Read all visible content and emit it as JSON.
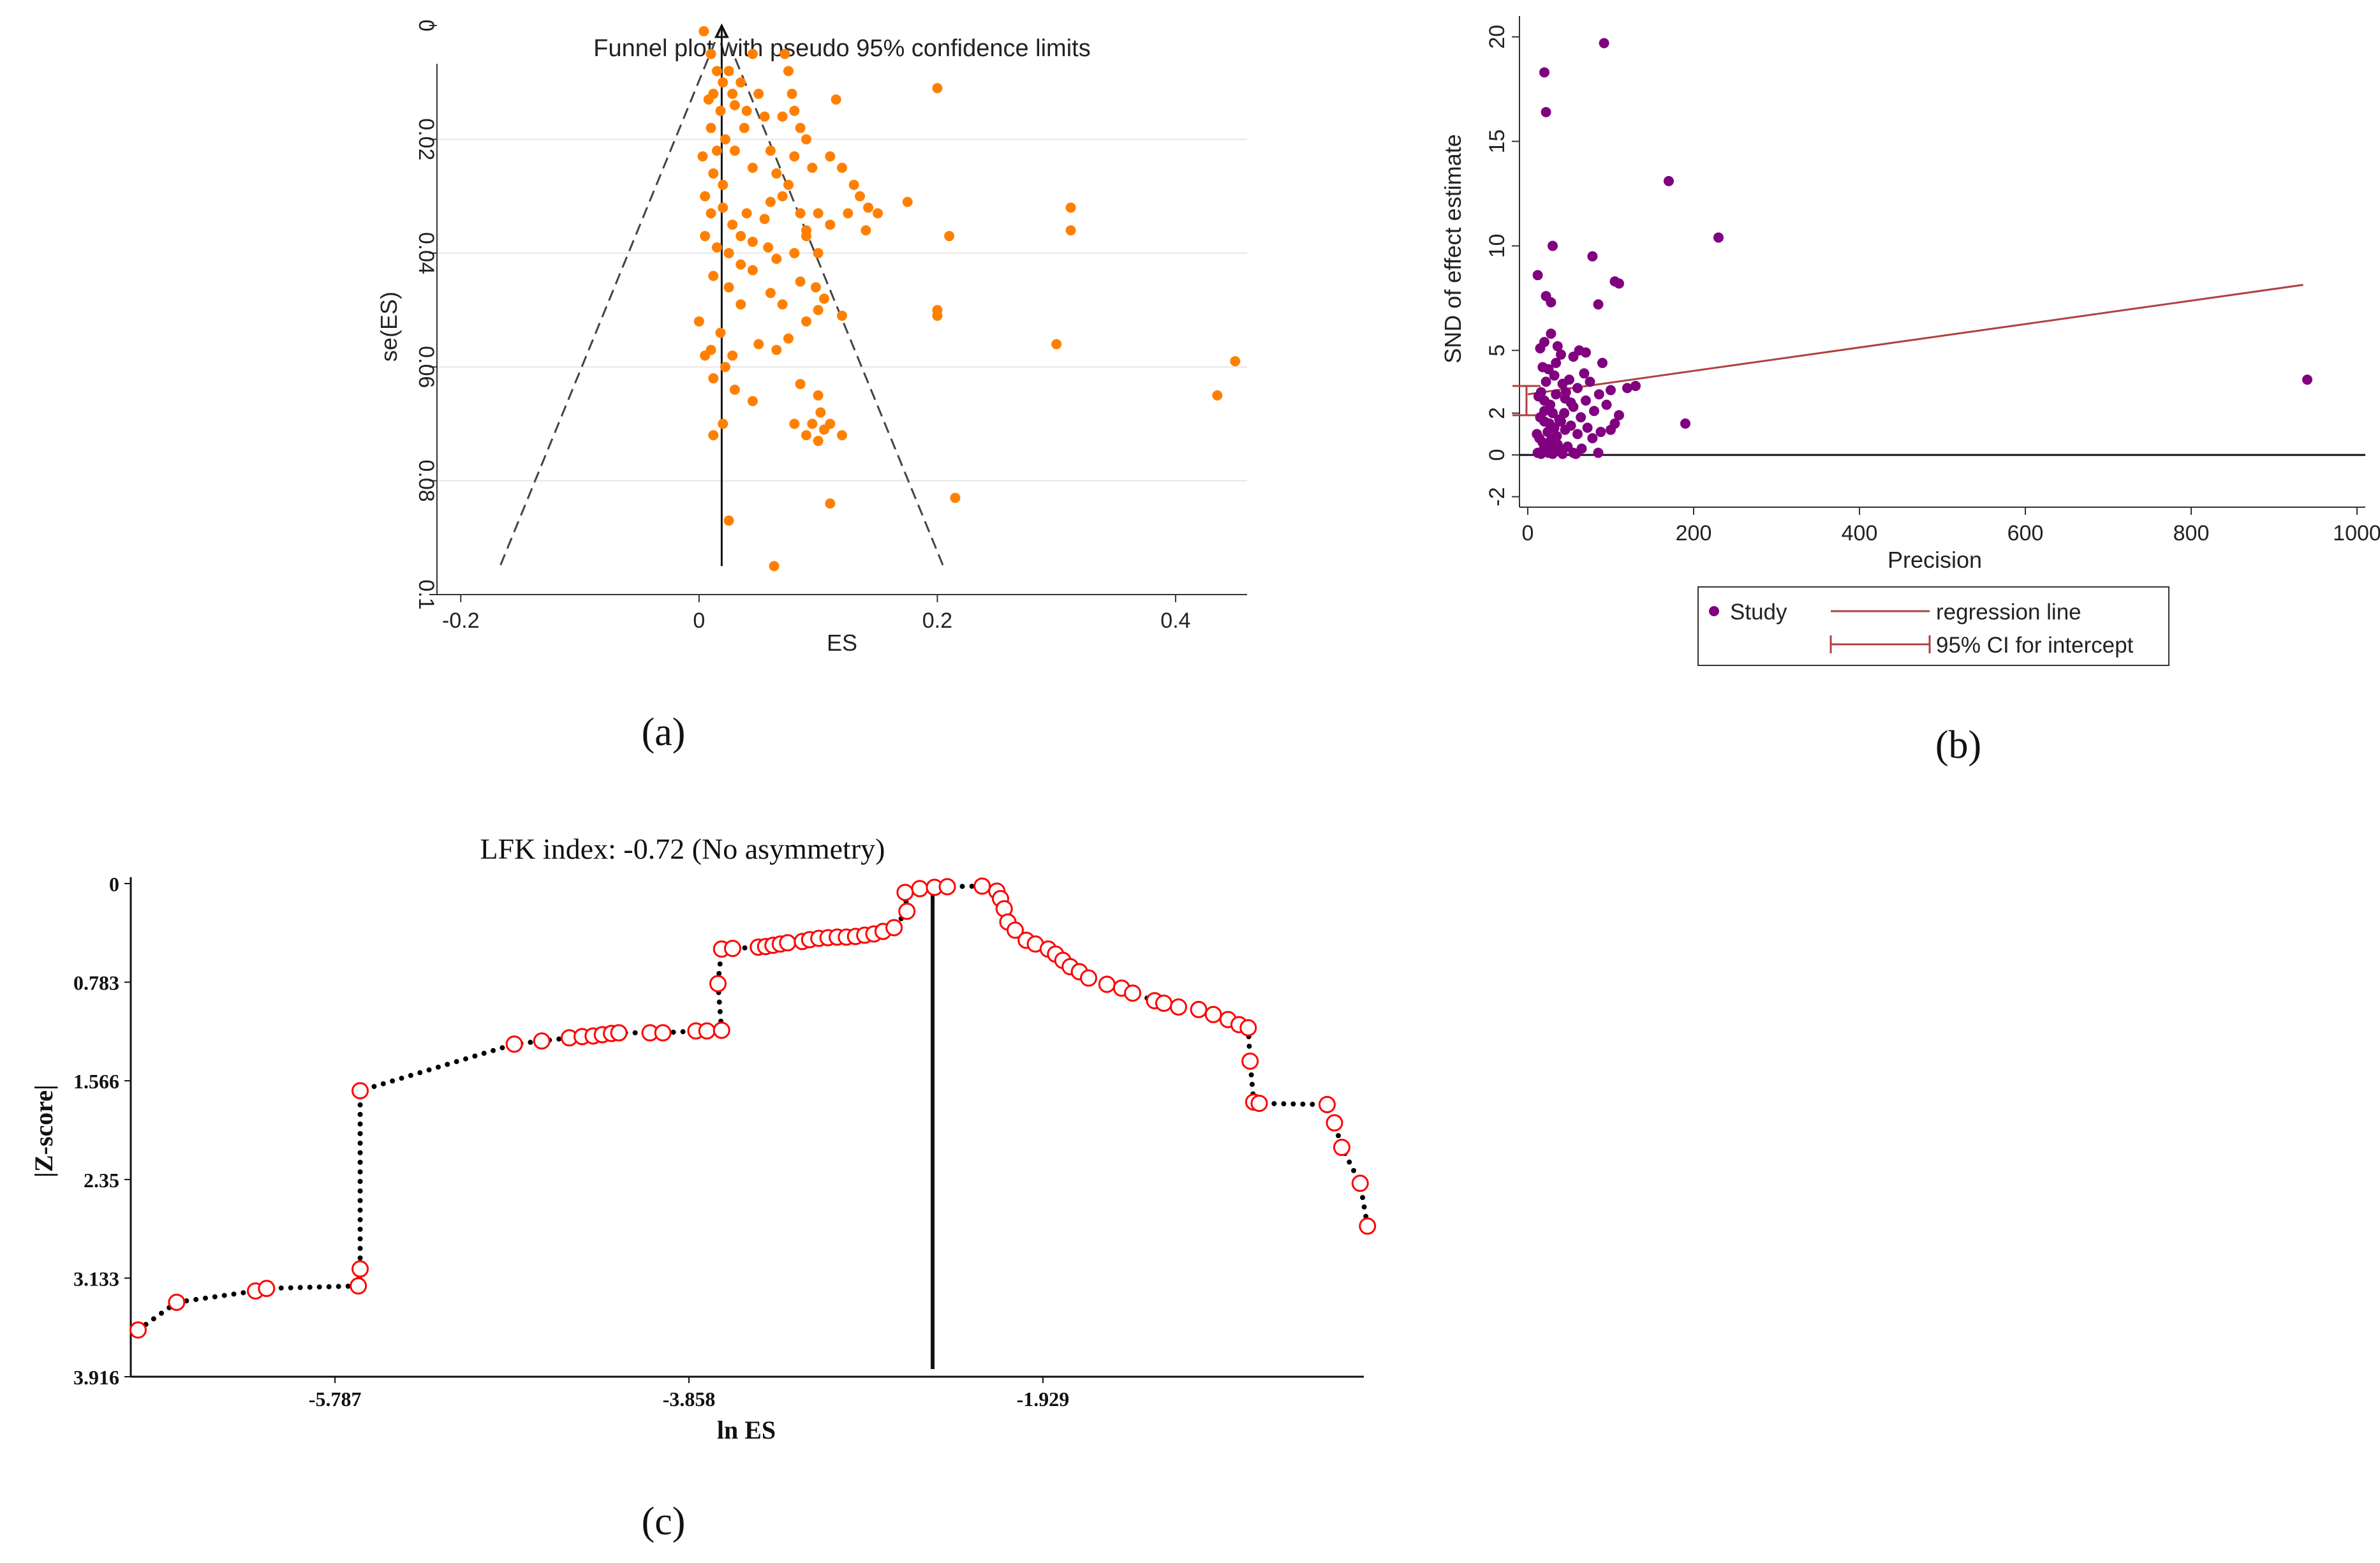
{
  "panel_labels": {
    "a": "(a)",
    "b": "(b)",
    "c": "(c)"
  },
  "colors": {
    "funnel_point": "#ff8000",
    "egger_point": "#800080",
    "regression": "#b04040",
    "lfk_point_edge": "#ff0000",
    "lfk_connector": "#000000"
  },
  "chart_data": [
    {
      "id": "a",
      "type": "scatter",
      "title": "Funnel plot with pseudo 95% confidence limits",
      "xlabel": "ES",
      "ylabel": "se(ES)",
      "xlim": [
        -0.22,
        0.46
      ],
      "ylim": [
        0.1,
        0
      ],
      "y_inverted": true,
      "xticks": [
        -0.2,
        0,
        0.2,
        0.4
      ],
      "xtick_labels": [
        "-0.2",
        "0",
        "0.2",
        "0.4"
      ],
      "yticks": [
        0,
        0.02,
        0.04,
        0.06,
        0.08,
        0.1
      ],
      "ytick_labels": [
        "0",
        "0.02",
        "0.04",
        "0.06",
        "0.08",
        "0.1"
      ],
      "pooled_es": 0.019,
      "funnel_bottom_se": 0.095,
      "funnel_left_es": -0.167,
      "funnel_right_es": 0.205,
      "points": [
        [
          0.004,
          0.001
        ],
        [
          0.01,
          0.005
        ],
        [
          0.015,
          0.008
        ],
        [
          0.02,
          0.01
        ],
        [
          0.025,
          0.008
        ],
        [
          0.028,
          0.012
        ],
        [
          0.035,
          0.01
        ],
        [
          0.045,
          0.005
        ],
        [
          0.012,
          0.012
        ],
        [
          0.018,
          0.015
        ],
        [
          0.008,
          0.013
        ],
        [
          0.03,
          0.014
        ],
        [
          0.05,
          0.012
        ],
        [
          0.038,
          0.018
        ],
        [
          0.022,
          0.02
        ],
        [
          0.01,
          0.018
        ],
        [
          0.015,
          0.022
        ],
        [
          0.04,
          0.015
        ],
        [
          0.055,
          0.016
        ],
        [
          0.06,
          0.022
        ],
        [
          0.072,
          0.005
        ],
        [
          0.075,
          0.008
        ],
        [
          0.078,
          0.012
        ],
        [
          0.08,
          0.015
        ],
        [
          0.085,
          0.018
        ],
        [
          0.09,
          0.02
        ],
        [
          0.115,
          0.013
        ],
        [
          0.07,
          0.016
        ],
        [
          0.003,
          0.023
        ],
        [
          0.012,
          0.026
        ],
        [
          0.02,
          0.028
        ],
        [
          0.03,
          0.022
        ],
        [
          0.045,
          0.025
        ],
        [
          0.065,
          0.026
        ],
        [
          0.08,
          0.023
        ],
        [
          0.095,
          0.025
        ],
        [
          0.11,
          0.023
        ],
        [
          0.12,
          0.025
        ],
        [
          0.135,
          0.03
        ],
        [
          0.142,
          0.032
        ],
        [
          0.005,
          0.03
        ],
        [
          0.01,
          0.033
        ],
        [
          0.02,
          0.032
        ],
        [
          0.028,
          0.035
        ],
        [
          0.035,
          0.037
        ],
        [
          0.04,
          0.033
        ],
        [
          0.055,
          0.034
        ],
        [
          0.06,
          0.031
        ],
        [
          0.07,
          0.03
        ],
        [
          0.075,
          0.028
        ],
        [
          0.085,
          0.033
        ],
        [
          0.09,
          0.036
        ],
        [
          0.1,
          0.033
        ],
        [
          0.11,
          0.035
        ],
        [
          0.125,
          0.033
        ],
        [
          0.13,
          0.028
        ],
        [
          0.14,
          0.036
        ],
        [
          0.15,
          0.033
        ],
        [
          0.175,
          0.031
        ],
        [
          0.21,
          0.037
        ],
        [
          0.005,
          0.037
        ],
        [
          0.015,
          0.039
        ],
        [
          0.025,
          0.04
        ],
        [
          0.035,
          0.042
        ],
        [
          0.045,
          0.038
        ],
        [
          0.058,
          0.039
        ],
        [
          0.065,
          0.041
        ],
        [
          0.08,
          0.04
        ],
        [
          0.09,
          0.037
        ],
        [
          0.1,
          0.04
        ],
        [
          0.012,
          0.044
        ],
        [
          0.025,
          0.046
        ],
        [
          0.035,
          0.049
        ],
        [
          0.045,
          0.043
        ],
        [
          0.06,
          0.047
        ],
        [
          0.07,
          0.049
        ],
        [
          0.085,
          0.045
        ],
        [
          0.098,
          0.046
        ],
        [
          0.105,
          0.048
        ],
        [
          0.12,
          0.051
        ],
        [
          0.0,
          0.052
        ],
        [
          0.01,
          0.057
        ],
        [
          0.018,
          0.054
        ],
        [
          0.022,
          0.06
        ],
        [
          0.028,
          0.058
        ],
        [
          0.05,
          0.056
        ],
        [
          0.075,
          0.055
        ],
        [
          0.09,
          0.052
        ],
        [
          0.1,
          0.05
        ],
        [
          0.2,
          0.05
        ],
        [
          0.2,
          0.051
        ],
        [
          0.005,
          0.058
        ],
        [
          0.012,
          0.062
        ],
        [
          0.03,
          0.064
        ],
        [
          0.045,
          0.066
        ],
        [
          0.065,
          0.057
        ],
        [
          0.085,
          0.063
        ],
        [
          0.1,
          0.065
        ],
        [
          0.102,
          0.068
        ],
        [
          0.08,
          0.07
        ],
        [
          0.095,
          0.07
        ],
        [
          0.105,
          0.071
        ],
        [
          0.11,
          0.07
        ],
        [
          0.12,
          0.072
        ],
        [
          0.012,
          0.072
        ],
        [
          0.02,
          0.07
        ],
        [
          0.09,
          0.072
        ],
        [
          0.1,
          0.073
        ],
        [
          0.025,
          0.087
        ],
        [
          0.11,
          0.084
        ],
        [
          0.215,
          0.083
        ],
        [
          0.063,
          0.095
        ],
        [
          0.3,
          0.056
        ],
        [
          0.312,
          0.032
        ],
        [
          0.312,
          0.036
        ],
        [
          0.2,
          0.011
        ],
        [
          0.45,
          0.059
        ],
        [
          0.435,
          0.065
        ]
      ]
    },
    {
      "id": "b",
      "type": "scatter",
      "title": "",
      "xlabel": "Precision",
      "ylabel": "SND of effect estimate",
      "xlim": [
        -10,
        1010
      ],
      "ylim": [
        -2.5,
        21
      ],
      "xticks": [
        0,
        200,
        400,
        600,
        800,
        1000
      ],
      "xtick_labels": [
        "0",
        "200",
        "400",
        "600",
        "800",
        "1000"
      ],
      "yticks": [
        -2,
        0,
        2,
        5,
        10,
        15,
        20
      ],
      "ytick_labels": [
        "-2",
        "0",
        "2",
        "5",
        "10",
        "15",
        "20"
      ],
      "regression": {
        "intercept": 2.9,
        "slope": 0.0056,
        "x_from": 0,
        "x_to": 935
      },
      "ci_intercept": [
        1.9,
        3.3
      ],
      "zero_line": 0,
      "legend": {
        "placement": "bottom",
        "study_label": "Study",
        "regression_label": "regression line",
        "ci_label": "95% CI for intercept"
      },
      "points": [
        [
          20,
          18.3
        ],
        [
          22,
          16.4
        ],
        [
          92,
          19.7
        ],
        [
          170,
          13.1
        ],
        [
          230,
          10.4
        ],
        [
          30,
          10
        ],
        [
          78,
          9.5
        ],
        [
          12,
          8.6
        ],
        [
          22,
          7.6
        ],
        [
          28,
          7.3
        ],
        [
          85,
          7.2
        ],
        [
          105,
          8.3
        ],
        [
          110,
          8.2
        ],
        [
          940,
          3.6
        ],
        [
          190,
          1.5
        ],
        [
          130,
          3.3
        ],
        [
          15,
          5.1
        ],
        [
          20,
          5.4
        ],
        [
          28,
          5.8
        ],
        [
          36,
          5.2
        ],
        [
          40,
          4.8
        ],
        [
          55,
          4.7
        ],
        [
          62,
          5.0
        ],
        [
          70,
          4.9
        ],
        [
          18,
          4.2
        ],
        [
          25,
          4.1
        ],
        [
          32,
          3.8
        ],
        [
          42,
          3.4
        ],
        [
          50,
          3.6
        ],
        [
          60,
          3.2
        ],
        [
          75,
          3.5
        ],
        [
          90,
          4.4
        ],
        [
          100,
          3.1
        ],
        [
          120,
          3.2
        ],
        [
          13,
          2.8
        ],
        [
          20,
          2.6
        ],
        [
          27,
          2.4
        ],
        [
          34,
          2.9
        ],
        [
          45,
          2.7
        ],
        [
          55,
          2.3
        ],
        [
          70,
          2.6
        ],
        [
          80,
          2.1
        ],
        [
          95,
          2.4
        ],
        [
          110,
          1.9
        ],
        [
          15,
          1.8
        ],
        [
          20,
          1.6
        ],
        [
          26,
          1.5
        ],
        [
          32,
          1.3
        ],
        [
          38,
          1.7
        ],
        [
          45,
          1.2
        ],
        [
          52,
          1.4
        ],
        [
          60,
          1.0
        ],
        [
          72,
          1.3
        ],
        [
          88,
          1.1
        ],
        [
          100,
          1.2
        ],
        [
          11,
          1.0
        ],
        [
          14,
          0.8
        ],
        [
          18,
          0.6
        ],
        [
          22,
          0.4
        ],
        [
          28,
          0.7
        ],
        [
          32,
          0.3
        ],
        [
          36,
          0.5
        ],
        [
          40,
          0.2
        ],
        [
          48,
          0.4
        ],
        [
          55,
          0.1
        ],
        [
          65,
          0.3
        ],
        [
          85,
          0.1
        ],
        [
          12,
          0.1
        ],
        [
          16,
          0.05
        ],
        [
          25,
          0.1
        ],
        [
          30,
          0.05
        ],
        [
          42,
          0.05
        ],
        [
          58,
          0.05
        ],
        [
          20,
          2.1
        ],
        [
          30,
          2.0
        ],
        [
          24,
          1.1
        ],
        [
          35,
          0.9
        ],
        [
          44,
          2.0
        ],
        [
          16,
          3.0
        ],
        [
          22,
          3.5
        ],
        [
          34,
          4.4
        ],
        [
          46,
          3.0
        ],
        [
          64,
          1.8
        ],
        [
          78,
          0.8
        ],
        [
          105,
          1.5
        ],
        [
          18,
          0.2
        ],
        [
          26,
          0.2
        ],
        [
          40,
          1.6
        ],
        [
          52,
          2.5
        ],
        [
          68,
          3.9
        ],
        [
          86,
          2.9
        ]
      ]
    },
    {
      "id": "c",
      "type": "line",
      "title": "LFK index: -0.72 (No asymmetry)",
      "xlabel": "ln ES",
      "ylabel": "|Z-score|",
      "xlim": [
        -6.9,
        -0.18
      ],
      "ylim": [
        3.916,
        0
      ],
      "y_inverted": true,
      "xticks": [
        -5.787,
        -3.858,
        -1.929
      ],
      "xtick_labels": [
        "-5.787",
        "-3.858",
        "-1.929"
      ],
      "yticks": [
        0,
        0.783,
        1.566,
        2.35,
        3.133,
        3.916
      ],
      "ytick_labels": [
        "0",
        "0.783",
        "1.566",
        "2.35",
        "3.133",
        "3.916"
      ],
      "center_x": -2.53,
      "points": [
        [
          -6.86,
          3.545
        ],
        [
          -6.65,
          3.325
        ],
        [
          -6.22,
          3.235
        ],
        [
          -6.16,
          3.215
        ],
        [
          -5.66,
          3.195
        ],
        [
          -5.65,
          3.06
        ],
        [
          -5.65,
          1.645
        ],
        [
          -4.81,
          1.275
        ],
        [
          -4.66,
          1.25
        ],
        [
          -4.51,
          1.225
        ],
        [
          -4.44,
          1.215
        ],
        [
          -4.38,
          1.21
        ],
        [
          -4.33,
          1.2
        ],
        [
          -4.28,
          1.19
        ],
        [
          -4.24,
          1.185
        ],
        [
          -4.07,
          1.185
        ],
        [
          -4.0,
          1.185
        ],
        [
          -3.82,
          1.17
        ],
        [
          -3.76,
          1.17
        ],
        [
          -3.68,
          1.165
        ],
        [
          -3.7,
          0.795
        ],
        [
          -3.68,
          0.52
        ],
        [
          -3.62,
          0.515
        ],
        [
          -3.48,
          0.505
        ],
        [
          -3.44,
          0.5
        ],
        [
          -3.4,
          0.49
        ],
        [
          -3.36,
          0.48
        ],
        [
          -3.32,
          0.47
        ],
        [
          -3.24,
          0.46
        ],
        [
          -3.2,
          0.445
        ],
        [
          -3.15,
          0.435
        ],
        [
          -3.1,
          0.43
        ],
        [
          -3.05,
          0.425
        ],
        [
          -3.0,
          0.425
        ],
        [
          -2.95,
          0.42
        ],
        [
          -2.9,
          0.41
        ],
        [
          -2.85,
          0.4
        ],
        [
          -2.8,
          0.38
        ],
        [
          -2.74,
          0.35
        ],
        [
          -2.67,
          0.22
        ],
        [
          -2.68,
          0.07
        ],
        [
          -2.6,
          0.04
        ],
        [
          -2.52,
          0.03
        ],
        [
          -2.45,
          0.025
        ],
        [
          -2.26,
          0.02
        ],
        [
          -2.18,
          0.06
        ],
        [
          -2.16,
          0.12
        ],
        [
          -2.14,
          0.2
        ],
        [
          -2.12,
          0.305
        ],
        [
          -2.08,
          0.37
        ],
        [
          -2.02,
          0.45
        ],
        [
          -1.97,
          0.48
        ],
        [
          -1.9,
          0.52
        ],
        [
          -1.86,
          0.56
        ],
        [
          -1.82,
          0.61
        ],
        [
          -1.78,
          0.66
        ],
        [
          -1.73,
          0.7
        ],
        [
          -1.68,
          0.75
        ],
        [
          -1.58,
          0.8
        ],
        [
          -1.5,
          0.83
        ],
        [
          -1.44,
          0.87
        ],
        [
          -1.32,
          0.93
        ],
        [
          -1.27,
          0.95
        ],
        [
          -1.19,
          0.98
        ],
        [
          -1.08,
          1.0
        ],
        [
          -1.0,
          1.04
        ],
        [
          -0.92,
          1.08
        ],
        [
          -0.86,
          1.12
        ],
        [
          -0.81,
          1.145
        ],
        [
          -0.8,
          1.41
        ],
        [
          -0.78,
          1.735
        ],
        [
          -0.75,
          1.745
        ],
        [
          -0.38,
          1.755
        ],
        [
          -0.34,
          1.9
        ],
        [
          -0.3,
          2.095
        ],
        [
          -0.2,
          2.38
        ],
        [
          -0.16,
          2.72
        ]
      ]
    }
  ]
}
